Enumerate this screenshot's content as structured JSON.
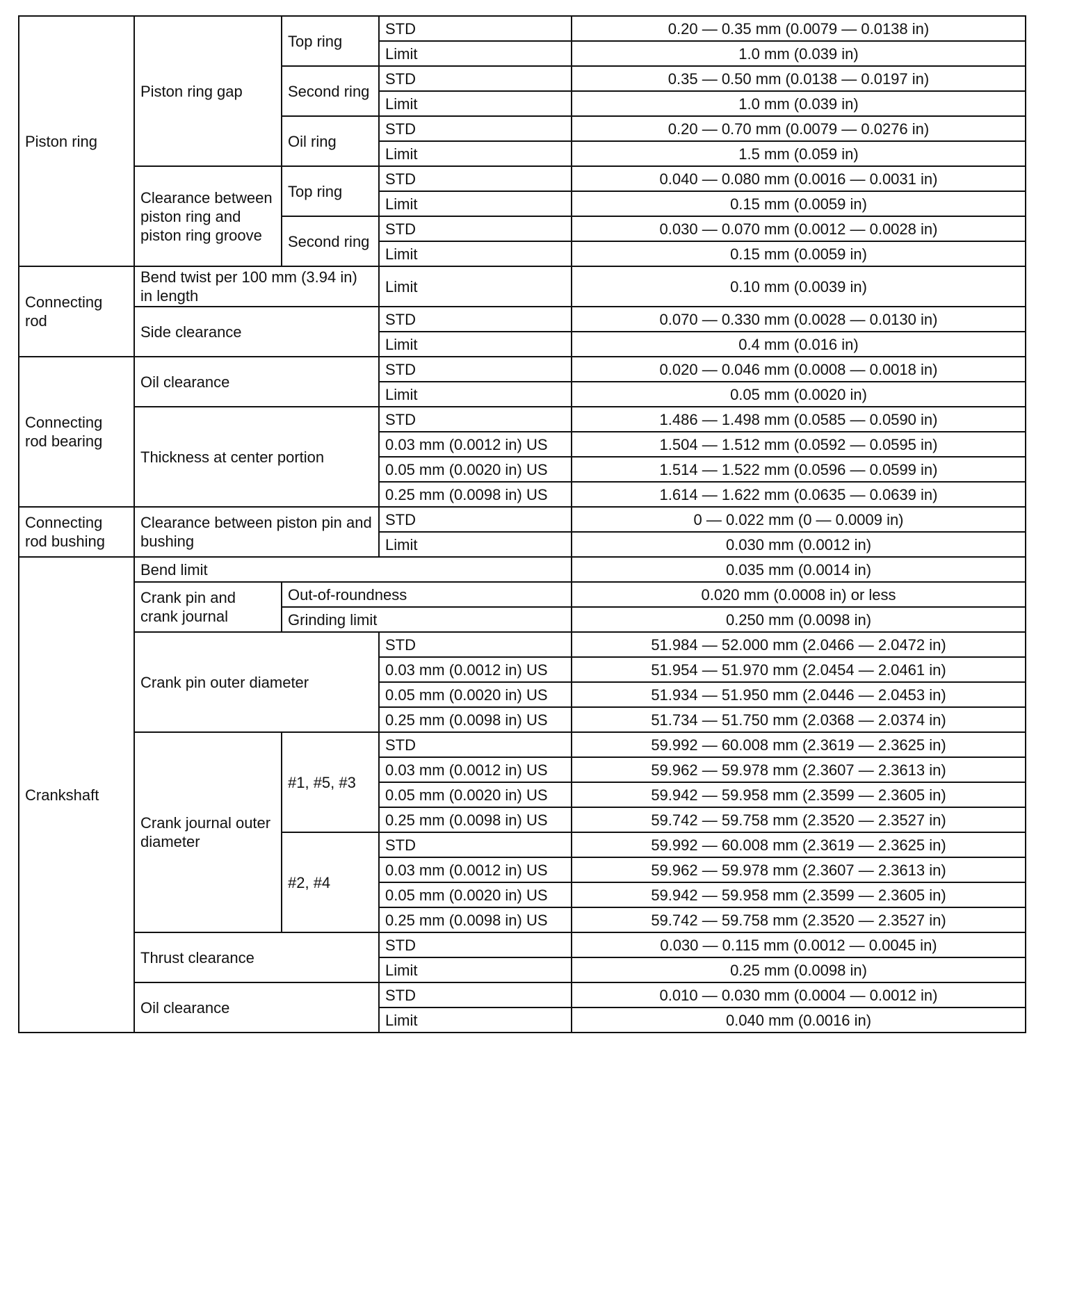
{
  "rows": [
    [
      {
        "t": "Piston ring",
        "rs": 10
      },
      {
        "t": "Piston ring gap",
        "rs": 6
      },
      {
        "t": "Top ring",
        "rs": 2
      },
      {
        "t": "STD"
      },
      {
        "t": "0.20 — 0.35 mm (0.0079 — 0.0138 in)",
        "c": 1
      }
    ],
    [
      {
        "t": "Limit"
      },
      {
        "t": "1.0 mm (0.039 in)",
        "c": 1
      }
    ],
    [
      {
        "t": "Second ring",
        "rs": 2
      },
      {
        "t": "STD"
      },
      {
        "t": "0.35 — 0.50 mm (0.0138 — 0.0197 in)",
        "c": 1
      }
    ],
    [
      {
        "t": "Limit"
      },
      {
        "t": "1.0 mm (0.039 in)",
        "c": 1
      }
    ],
    [
      {
        "t": "Oil ring",
        "rs": 2
      },
      {
        "t": "STD"
      },
      {
        "t": "0.20 — 0.70 mm (0.0079 — 0.0276 in)",
        "c": 1
      }
    ],
    [
      {
        "t": "Limit"
      },
      {
        "t": "1.5 mm (0.059 in)",
        "c": 1
      }
    ],
    [
      {
        "t": "Clearance between piston ring and piston ring groove",
        "rs": 4
      },
      {
        "t": "Top ring",
        "rs": 2
      },
      {
        "t": "STD"
      },
      {
        "t": "0.040 — 0.080 mm (0.0016 — 0.0031 in)",
        "c": 1
      }
    ],
    [
      {
        "t": "Limit"
      },
      {
        "t": "0.15 mm (0.0059 in)",
        "c": 1
      }
    ],
    [
      {
        "t": "Second ring",
        "rs": 2
      },
      {
        "t": "STD"
      },
      {
        "t": "0.030 — 0.070 mm (0.0012 — 0.0028 in)",
        "c": 1
      }
    ],
    [
      {
        "t": "Limit"
      },
      {
        "t": "0.15 mm (0.0059 in)",
        "c": 1
      }
    ],
    [
      {
        "t": "Connecting rod",
        "rs": 3
      },
      {
        "t": "Bend twist per 100 mm (3.94 in) in length",
        "cs": 2
      },
      {
        "t": "Limit"
      },
      {
        "t": "0.10 mm (0.0039 in)",
        "c": 1
      }
    ],
    [
      {
        "t": "Side clearance",
        "cs": 2,
        "rs": 2
      },
      {
        "t": "STD"
      },
      {
        "t": "0.070 — 0.330 mm (0.0028 — 0.0130 in)",
        "c": 1
      }
    ],
    [
      {
        "t": "Limit"
      },
      {
        "t": "0.4 mm (0.016 in)",
        "c": 1
      }
    ],
    [
      {
        "t": "Connecting rod bearing",
        "rs": 6
      },
      {
        "t": "Oil clearance",
        "cs": 2,
        "rs": 2
      },
      {
        "t": "STD"
      },
      {
        "t": "0.020 — 0.046 mm (0.0008 — 0.0018 in)",
        "c": 1
      }
    ],
    [
      {
        "t": "Limit"
      },
      {
        "t": "0.05 mm (0.0020 in)",
        "c": 1
      }
    ],
    [
      {
        "t": "Thickness at center portion",
        "cs": 2,
        "rs": 4
      },
      {
        "t": "STD"
      },
      {
        "t": "1.486 — 1.498 mm (0.0585 — 0.0590 in)",
        "c": 1
      }
    ],
    [
      {
        "t": "0.03 mm (0.0012 in) US"
      },
      {
        "t": "1.504 — 1.512 mm (0.0592 — 0.0595 in)",
        "c": 1
      }
    ],
    [
      {
        "t": "0.05 mm (0.0020 in) US"
      },
      {
        "t": "1.514 — 1.522 mm (0.0596 — 0.0599 in)",
        "c": 1
      }
    ],
    [
      {
        "t": "0.25 mm (0.0098 in) US"
      },
      {
        "t": "1.614 — 1.622 mm (0.0635 — 0.0639 in)",
        "c": 1
      }
    ],
    [
      {
        "t": "Connecting rod bushing",
        "rs": 2
      },
      {
        "t": "Clearance between piston pin and bushing",
        "cs": 2,
        "rs": 2
      },
      {
        "t": "STD"
      },
      {
        "t": "0 — 0.022 mm (0 — 0.0009 in)",
        "c": 1
      }
    ],
    [
      {
        "t": "Limit"
      },
      {
        "t": "0.030 mm (0.0012 in)",
        "c": 1
      }
    ],
    [
      {
        "t": "Crankshaft",
        "rs": 19
      },
      {
        "t": "Bend limit",
        "cs": 3
      },
      {
        "t": "0.035 mm (0.0014 in)",
        "c": 1
      }
    ],
    [
      {
        "t": "Crank pin and crank journal",
        "rs": 2
      },
      {
        "t": "Out-of-roundness",
        "cs": 2
      },
      {
        "t": "0.020 mm (0.0008 in) or less",
        "c": 1
      }
    ],
    [
      {
        "t": "Grinding limit",
        "cs": 2
      },
      {
        "t": "0.250 mm (0.0098 in)",
        "c": 1
      }
    ],
    [
      {
        "t": "Crank pin outer diameter",
        "cs": 2,
        "rs": 4
      },
      {
        "t": "STD"
      },
      {
        "t": "51.984 — 52.000 mm (2.0466 — 2.0472 in)",
        "c": 1
      }
    ],
    [
      {
        "t": "0.03 mm (0.0012 in) US"
      },
      {
        "t": "51.954 — 51.970 mm (2.0454 — 2.0461 in)",
        "c": 1
      }
    ],
    [
      {
        "t": "0.05 mm (0.0020 in) US"
      },
      {
        "t": "51.934 — 51.950 mm (2.0446 — 2.0453 in)",
        "c": 1
      }
    ],
    [
      {
        "t": "0.25 mm (0.0098 in) US"
      },
      {
        "t": "51.734 — 51.750 mm (2.0368 — 2.0374 in)",
        "c": 1
      }
    ],
    [
      {
        "t": "Crank journal outer diameter",
        "rs": 8
      },
      {
        "t": "#1, #5, #3",
        "rs": 4
      },
      {
        "t": "STD"
      },
      {
        "t": "59.992 — 60.008 mm (2.3619 — 2.3625 in)",
        "c": 1
      }
    ],
    [
      {
        "t": "0.03 mm (0.0012 in) US"
      },
      {
        "t": "59.962 — 59.978 mm (2.3607 — 2.3613 in)",
        "c": 1
      }
    ],
    [
      {
        "t": "0.05 mm (0.0020 in) US"
      },
      {
        "t": "59.942 — 59.958 mm (2.3599 — 2.3605 in)",
        "c": 1
      }
    ],
    [
      {
        "t": "0.25 mm (0.0098 in) US"
      },
      {
        "t": "59.742 — 59.758 mm (2.3520 — 2.3527 in)",
        "c": 1
      }
    ],
    [
      {
        "t": "#2, #4",
        "rs": 4
      },
      {
        "t": "STD"
      },
      {
        "t": "59.992 — 60.008 mm (2.3619 — 2.3625 in)",
        "c": 1
      }
    ],
    [
      {
        "t": "0.03 mm (0.0012 in) US"
      },
      {
        "t": "59.962 — 59.978 mm (2.3607 — 2.3613 in)",
        "c": 1
      }
    ],
    [
      {
        "t": "0.05 mm (0.0020 in) US"
      },
      {
        "t": "59.942 — 59.958 mm (2.3599 — 2.3605 in)",
        "c": 1
      }
    ],
    [
      {
        "t": "0.25 mm (0.0098 in) US"
      },
      {
        "t": "59.742 — 59.758 mm (2.3520 — 2.3527 in)",
        "c": 1
      }
    ],
    [
      {
        "t": "Thrust clearance",
        "cs": 2,
        "rs": 2
      },
      {
        "t": "STD"
      },
      {
        "t": "0.030 — 0.115 mm (0.0012 — 0.0045 in)",
        "c": 1
      }
    ],
    [
      {
        "t": "Limit"
      },
      {
        "t": "0.25 mm (0.0098 in)",
        "c": 1
      }
    ],
    [
      {
        "t": "Oil clearance",
        "cs": 2,
        "rs": 2
      },
      {
        "t": "STD"
      },
      {
        "t": "0.010 — 0.030 mm (0.0004 — 0.0012 in)",
        "c": 1
      }
    ],
    [
      {
        "t": "Limit"
      },
      {
        "t": "0.040 mm (0.0016 in)",
        "c": 1
      }
    ]
  ]
}
